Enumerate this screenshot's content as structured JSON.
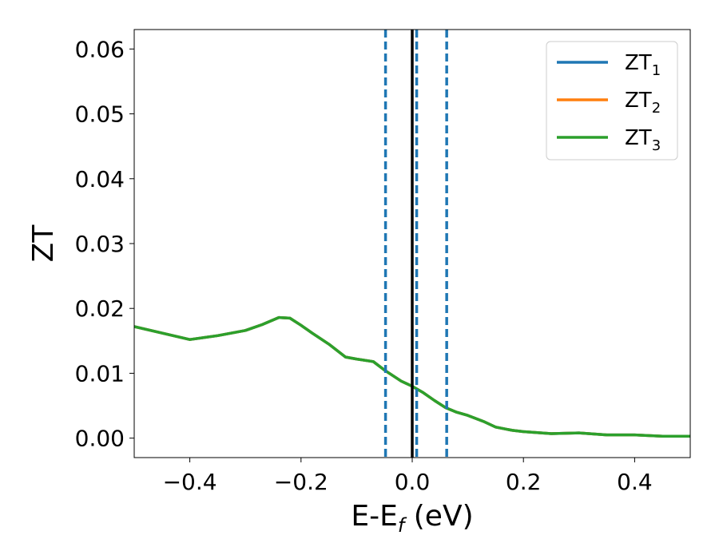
{
  "chart_data": {
    "type": "line",
    "xlabel_main": "E-E",
    "xlabel_sub": "f",
    "xlabel_unit": " (eV)",
    "ylabel": "ZT",
    "xlim": [
      -0.5,
      0.5
    ],
    "ylim": [
      -0.003,
      0.063
    ],
    "grid": false,
    "legend_position": "top-right",
    "x_ticks": [
      -0.4,
      -0.2,
      0.0,
      0.2,
      0.4
    ],
    "x_tick_labels": [
      "−0.4",
      "−0.2",
      "0.0",
      "0.2",
      "0.4"
    ],
    "y_ticks": [
      0.0,
      0.01,
      0.02,
      0.03,
      0.04,
      0.05,
      0.06
    ],
    "y_tick_labels": [
      "0.00",
      "0.01",
      "0.02",
      "0.03",
      "0.04",
      "0.05",
      "0.06"
    ],
    "series": [
      {
        "name": "ZT",
        "sub": "1",
        "color": "#1f77b4",
        "x": [
          -0.5,
          -0.45,
          -0.4,
          -0.35,
          -0.3,
          -0.27,
          -0.24,
          -0.22,
          -0.2,
          -0.18,
          -0.15,
          -0.12,
          -0.1,
          -0.07,
          -0.05,
          -0.02,
          0.0,
          0.02,
          0.04,
          0.06,
          0.08,
          0.1,
          0.13,
          0.15,
          0.18,
          0.2,
          0.25,
          0.3,
          0.35,
          0.4,
          0.45,
          0.5
        ],
        "y": [
          0.0172,
          0.0162,
          0.0152,
          0.0158,
          0.0166,
          0.0175,
          0.0186,
          0.0185,
          0.0174,
          0.0162,
          0.0145,
          0.0125,
          0.0122,
          0.0118,
          0.0105,
          0.0088,
          0.008,
          0.007,
          0.0058,
          0.0047,
          0.004,
          0.0035,
          0.0025,
          0.0017,
          0.0012,
          0.001,
          0.0007,
          0.0008,
          0.0005,
          0.0005,
          0.0003,
          0.0003
        ]
      },
      {
        "name": "ZT",
        "sub": "2",
        "color": "#ff7f0e",
        "x": [
          -0.5,
          -0.45,
          -0.4,
          -0.35,
          -0.3,
          -0.27,
          -0.24,
          -0.22,
          -0.2,
          -0.18,
          -0.15,
          -0.12,
          -0.1,
          -0.07,
          -0.05,
          -0.02,
          0.0,
          0.02,
          0.04,
          0.06,
          0.08,
          0.1,
          0.13,
          0.15,
          0.18,
          0.2,
          0.25,
          0.3,
          0.35,
          0.4,
          0.45,
          0.5
        ],
        "y": [
          0.0172,
          0.0162,
          0.0152,
          0.0158,
          0.0166,
          0.0175,
          0.0186,
          0.0185,
          0.0174,
          0.0162,
          0.0145,
          0.0125,
          0.0122,
          0.0118,
          0.0105,
          0.0088,
          0.008,
          0.007,
          0.0058,
          0.0047,
          0.004,
          0.0035,
          0.0025,
          0.0017,
          0.0012,
          0.001,
          0.0007,
          0.0008,
          0.0005,
          0.0005,
          0.0003,
          0.0003
        ]
      },
      {
        "name": "ZT",
        "sub": "3",
        "color": "#2ca02c",
        "x": [
          -0.5,
          -0.45,
          -0.4,
          -0.35,
          -0.3,
          -0.27,
          -0.24,
          -0.22,
          -0.2,
          -0.18,
          -0.15,
          -0.12,
          -0.1,
          -0.07,
          -0.05,
          -0.02,
          0.0,
          0.02,
          0.04,
          0.06,
          0.08,
          0.1,
          0.13,
          0.15,
          0.18,
          0.2,
          0.25,
          0.3,
          0.35,
          0.4,
          0.45,
          0.5
        ],
        "y": [
          0.0172,
          0.0162,
          0.0152,
          0.0158,
          0.0166,
          0.0175,
          0.0186,
          0.0185,
          0.0174,
          0.0162,
          0.0145,
          0.0125,
          0.0122,
          0.0118,
          0.0105,
          0.0088,
          0.008,
          0.007,
          0.0058,
          0.0047,
          0.004,
          0.0035,
          0.0025,
          0.0017,
          0.0012,
          0.001,
          0.0007,
          0.0008,
          0.0005,
          0.0005,
          0.0003,
          0.0003
        ]
      }
    ],
    "vlines": [
      {
        "x": -0.048,
        "style": "dashed",
        "color": "#1f77b4"
      },
      {
        "x": 0.008,
        "style": "dashed",
        "color": "#1f77b4"
      },
      {
        "x": 0.062,
        "style": "dashed",
        "color": "#1f77b4"
      },
      {
        "x": 0.0,
        "style": "solid",
        "color": "#000000"
      }
    ]
  }
}
